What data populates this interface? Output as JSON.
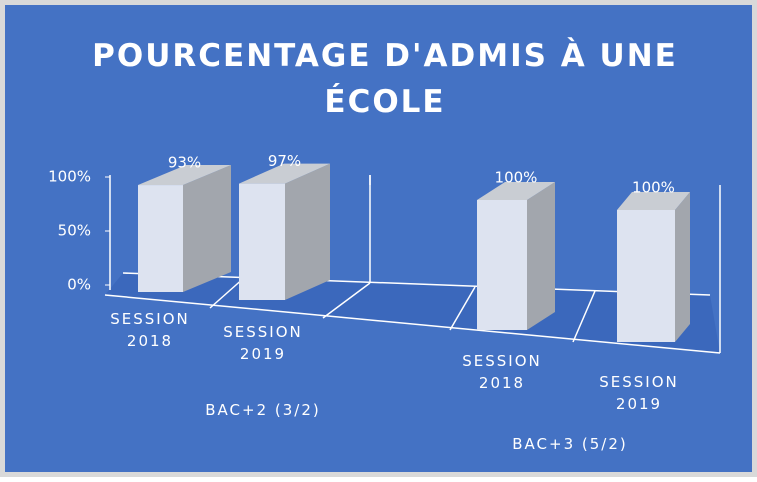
{
  "chart_data": {
    "type": "bar",
    "title": "POURCENTAGE D'ADMIS À UNE ÉCOLE",
    "groups": [
      {
        "label": "BAC+2 (3/2)",
        "categories": [
          "SESSION 2018",
          "SESSION 2019"
        ],
        "values": [
          93,
          97
        ],
        "value_labels": [
          "93%",
          "97%"
        ]
      },
      {
        "label": "BAC+3 (5/2)",
        "categories": [
          "SESSION 2018",
          "SESSION 2019"
        ],
        "values": [
          100,
          100
        ],
        "value_labels": [
          "100%",
          "100%"
        ]
      }
    ],
    "ylim": [
      0,
      100
    ],
    "yticks": [
      {
        "value": 0,
        "label": "0%"
      },
      {
        "value": 50,
        "label": "50%"
      },
      {
        "value": 100,
        "label": "100%"
      }
    ],
    "color": "#dde3f0",
    "grid": false
  }
}
